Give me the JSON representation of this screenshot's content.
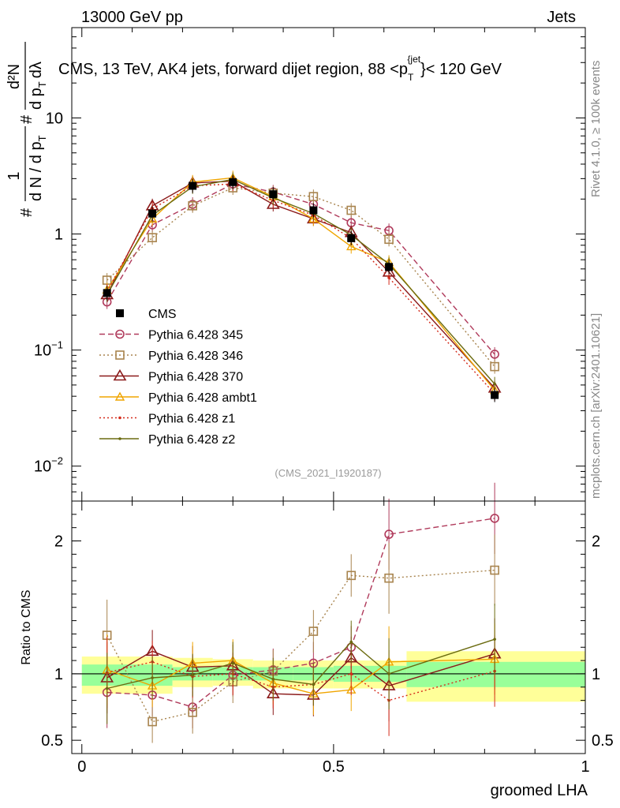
{
  "header": {
    "left": "13000 GeV pp",
    "right": "Jets"
  },
  "side": {
    "rivet": "Rivet 4.1.0, ≥ 100k events",
    "mcplots": "mcplots.cern.ch [arXiv:2401.10621]"
  },
  "colors": {
    "cms": "#000000",
    "p345": "#b03a5b",
    "p346": "#a8844e",
    "p370": "#8b1a1a",
    "ambt1": "#f0a500",
    "z1": "#d42a1a",
    "z2": "#6b6b10",
    "band_outer": "#ffff99",
    "band_inner": "#99ff99"
  },
  "chart_data": [
    {
      "type": "line",
      "panel": "main",
      "title": "CMS, 13 TeV, AK4 jets, forward dijet region, 88 <p",
      "title_sub": "T",
      "title_sup": "{jet",
      "title_end": "}< 120 GeV",
      "ylabel_parts": {
        "hash": "#",
        "one": "1",
        "denom": "d N / d p",
        "denom_sub": "T",
        "num": "d²N",
        "num_denom": "d p",
        "num_denom_sub": "T",
        "num_denom_end": "dλ"
      },
      "yscale": "log",
      "ylim": [
        0.005,
        60
      ],
      "xlim": [
        -0.02,
        1.0
      ],
      "yticks": [
        {
          "base": "10",
          "exp": "−2",
          "value": 0.01
        },
        {
          "base": "10",
          "exp": "−1",
          "value": 0.1
        },
        {
          "base": "1",
          "exp": "",
          "value": 1
        },
        {
          "base": "10",
          "exp": "",
          "value": 10
        }
      ],
      "watermark": "(CMS_2021_I1920187)",
      "x": [
        0.05,
        0.14,
        0.22,
        0.3,
        0.38,
        0.46,
        0.535,
        0.61,
        0.82
      ],
      "series": [
        {
          "name": "CMS",
          "color_key": "cms",
          "marker": "square",
          "line": "none",
          "values": [
            0.31,
            1.5,
            2.6,
            2.8,
            2.2,
            1.6,
            0.92,
            0.52,
            0.041
          ]
        },
        {
          "name": "Pythia 6.428 345",
          "color_key": "p345",
          "marker": "circle",
          "line": "dashed",
          "values": [
            0.26,
            1.2,
            1.8,
            2.7,
            2.3,
            1.8,
            1.25,
            1.07,
            0.092
          ]
        },
        {
          "name": "Pythia 6.428 346",
          "color_key": "p346",
          "marker": "open-square",
          "line": "dotted",
          "values": [
            0.4,
            0.93,
            1.75,
            2.5,
            2.25,
            2.1,
            1.6,
            0.9,
            0.072
          ]
        },
        {
          "name": "Pythia 6.428 370",
          "color_key": "p370",
          "marker": "triangle",
          "line": "solid",
          "values": [
            0.3,
            1.75,
            2.75,
            2.85,
            1.8,
            1.35,
            1.03,
            0.47,
            0.047
          ]
        },
        {
          "name": "Pythia 6.428 ambt1",
          "color_key": "ambt1",
          "marker": "triangle-small",
          "line": "solid",
          "values": [
            0.33,
            1.35,
            2.8,
            3.05,
            2.1,
            1.35,
            0.78,
            0.57,
            0.045
          ]
        },
        {
          "name": "Pythia 6.428 z1",
          "color_key": "z1",
          "marker": "dot",
          "line": "dotted",
          "values": [
            0.32,
            1.65,
            2.6,
            2.7,
            1.95,
            1.45,
            0.92,
            0.42,
            0.042
          ]
        },
        {
          "name": "Pythia 6.428 z2",
          "color_key": "z2",
          "marker": "dot",
          "line": "solid",
          "values": [
            0.3,
            1.45,
            2.55,
            2.95,
            2.05,
            1.5,
            0.98,
            0.55,
            0.051
          ]
        }
      ]
    },
    {
      "type": "line",
      "panel": "ratio",
      "ylabel": "Ratio to CMS",
      "xlabel": "groomed LHA",
      "ylim": [
        0.4,
        2.3
      ],
      "xlim": [
        -0.02,
        1.0
      ],
      "yticks": [
        {
          "label": "0.5",
          "value": 0.5
        },
        {
          "label": "1",
          "value": 1
        },
        {
          "label": "2",
          "value": 2
        }
      ],
      "xticks": [
        {
          "label": "0",
          "value": 0
        },
        {
          "label": "0.5",
          "value": 0.5
        },
        {
          "label": "1",
          "value": 1
        }
      ],
      "band_bins": [
        {
          "lo": 0.0,
          "hi": 0.18,
          "outer": [
            0.85,
            1.13
          ],
          "inner": [
            0.91,
            1.07
          ]
        },
        {
          "lo": 0.18,
          "hi": 0.26,
          "outer": [
            0.9,
            1.12
          ],
          "inner": [
            0.95,
            1.05
          ]
        },
        {
          "lo": 0.26,
          "hi": 0.34,
          "outer": [
            0.91,
            1.11
          ],
          "inner": [
            0.95,
            1.05
          ]
        },
        {
          "lo": 0.34,
          "hi": 0.42,
          "outer": [
            0.89,
            1.1
          ],
          "inner": [
            0.95,
            1.05
          ]
        },
        {
          "lo": 0.42,
          "hi": 0.5,
          "outer": [
            0.89,
            1.1
          ],
          "inner": [
            0.95,
            1.05
          ]
        },
        {
          "lo": 0.5,
          "hi": 0.57,
          "outer": [
            0.89,
            1.1
          ],
          "inner": [
            0.94,
            1.06
          ]
        },
        {
          "lo": 0.57,
          "hi": 0.645,
          "outer": [
            0.89,
            1.1
          ],
          "inner": [
            0.94,
            1.06
          ]
        },
        {
          "lo": 0.645,
          "hi": 1.0,
          "outer": [
            0.79,
            1.17
          ],
          "inner": [
            0.9,
            1.09
          ]
        }
      ],
      "x": [
        0.05,
        0.14,
        0.22,
        0.3,
        0.38,
        0.46,
        0.535,
        0.61,
        0.82
      ],
      "series": [
        {
          "name": "Pythia 6.428 345",
          "color_key": "p345",
          "marker": "circle",
          "line": "dashed",
          "values": [
            0.86,
            0.84,
            0.75,
            0.99,
            1.03,
            1.08,
            1.2,
            2.05,
            2.17
          ]
        },
        {
          "name": "Pythia 6.428 346",
          "color_key": "p346",
          "marker": "open-square",
          "line": "dotted",
          "values": [
            1.29,
            0.64,
            0.71,
            0.94,
            1.02,
            1.32,
            1.74,
            1.72,
            1.78
          ]
        },
        {
          "name": "Pythia 6.428 370",
          "color_key": "p370",
          "marker": "triangle",
          "line": "solid",
          "values": [
            0.97,
            1.17,
            1.05,
            1.06,
            0.85,
            0.84,
            1.12,
            0.91,
            1.15
          ]
        },
        {
          "name": "Pythia 6.428 ambt1",
          "color_key": "ambt1",
          "marker": "triangle-small",
          "line": "solid",
          "values": [
            1.03,
            0.91,
            1.08,
            1.1,
            0.93,
            0.85,
            0.88,
            1.09,
            1.11
          ]
        },
        {
          "name": "Pythia 6.428 z1",
          "color_key": "z1",
          "marker": "dot",
          "line": "dotted",
          "values": [
            1.01,
            1.09,
            0.98,
            1.0,
            0.9,
            0.92,
            1.0,
            0.8,
            1.02
          ]
        },
        {
          "name": "Pythia 6.428 z2",
          "color_key": "z2",
          "marker": "dot",
          "line": "solid",
          "values": [
            0.89,
            0.97,
            0.99,
            1.08,
            0.96,
            0.92,
            1.24,
            1.0,
            1.26
          ]
        }
      ]
    }
  ]
}
